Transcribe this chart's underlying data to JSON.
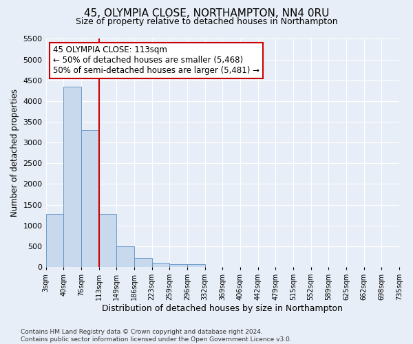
{
  "title1": "45, OLYMPIA CLOSE, NORTHAMPTON, NN4 0RU",
  "title2": "Size of property relative to detached houses in Northampton",
  "xlabel": "Distribution of detached houses by size in Northampton",
  "ylabel": "Number of detached properties",
  "bar_values": [
    1270,
    4350,
    3300,
    1280,
    490,
    215,
    90,
    70,
    60,
    0,
    0,
    0,
    0,
    0,
    0,
    0,
    0,
    0,
    0,
    0
  ],
  "x_labels": [
    "3sqm",
    "40sqm",
    "76sqm",
    "113sqm",
    "149sqm",
    "186sqm",
    "223sqm",
    "259sqm",
    "296sqm",
    "332sqm",
    "369sqm",
    "406sqm",
    "442sqm",
    "479sqm",
    "515sqm",
    "552sqm",
    "589sqm",
    "625sqm",
    "662sqm",
    "698sqm",
    "735sqm"
  ],
  "bar_color": "#c9d9ed",
  "bar_edge_color": "#5a8fc3",
  "vline_x_index": 3,
  "vline_color": "#cc0000",
  "ylim": [
    0,
    5500
  ],
  "yticks": [
    0,
    500,
    1000,
    1500,
    2000,
    2500,
    3000,
    3500,
    4000,
    4500,
    5000,
    5500
  ],
  "annotation_text": "45 OLYMPIA CLOSE: 113sqm\n← 50% of detached houses are smaller (5,468)\n50% of semi-detached houses are larger (5,481) →",
  "annotation_box_color": "#ffffff",
  "annotation_box_edge": "#cc0000",
  "bg_color": "#e8eef7",
  "plot_bg_color": "#e8eef7",
  "footer": "Contains HM Land Registry data © Crown copyright and database right 2024.\nContains public sector information licensed under the Open Government Licence v3.0.",
  "grid_color": "#ffffff",
  "title1_fontsize": 11,
  "title2_fontsize": 9,
  "xlabel_fontsize": 9,
  "ylabel_fontsize": 8.5,
  "annotation_fontsize": 8.5,
  "footer_fontsize": 6.5
}
